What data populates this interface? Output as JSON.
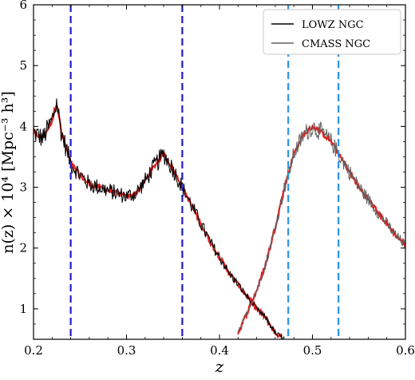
{
  "chart_data": {
    "type": "line",
    "xlabel": "z",
    "ylabel": "n(z) × 10⁴ [Mpc⁻³ h³]",
    "xlim": [
      0.2,
      0.6
    ],
    "ylim": [
      0.5,
      6.0
    ],
    "grid": false,
    "legend_position": "top-right",
    "x_ticks": [
      0.2,
      0.3,
      0.4,
      0.5,
      0.6
    ],
    "x_tick_labels": [
      "0.2",
      "0.3",
      "0.4",
      "0.5",
      "0.6"
    ],
    "y_ticks": [
      1,
      2,
      3,
      4,
      5,
      6
    ],
    "y_tick_labels": [
      "1",
      "2",
      "3",
      "4",
      "5",
      "6"
    ],
    "series": [
      {
        "name": "LOWZ NGC",
        "color": "#000000",
        "x": [
          0.2,
          0.21,
          0.22,
          0.225,
          0.23,
          0.24,
          0.25,
          0.26,
          0.27,
          0.28,
          0.29,
          0.3,
          0.31,
          0.32,
          0.33,
          0.34,
          0.35,
          0.36,
          0.37,
          0.38,
          0.39,
          0.4,
          0.41,
          0.42,
          0.43,
          0.44,
          0.45,
          0.46,
          0.47
        ],
        "y": [
          3.9,
          3.8,
          4.1,
          4.4,
          3.9,
          3.4,
          3.2,
          3.05,
          3.0,
          2.95,
          2.9,
          2.85,
          2.9,
          3.1,
          3.35,
          3.55,
          3.3,
          3.0,
          2.7,
          2.4,
          2.1,
          1.85,
          1.6,
          1.4,
          1.2,
          1.0,
          0.85,
          0.6,
          0.5
        ],
        "noise": 0.14
      },
      {
        "name": "CMASS NGC",
        "color": "#606060",
        "x": [
          0.42,
          0.43,
          0.44,
          0.45,
          0.46,
          0.47,
          0.48,
          0.49,
          0.5,
          0.51,
          0.52,
          0.53,
          0.54,
          0.55,
          0.56,
          0.57,
          0.58,
          0.59,
          0.6
        ],
        "y": [
          0.6,
          0.95,
          1.3,
          1.75,
          2.35,
          3.0,
          3.55,
          3.85,
          4.0,
          3.9,
          3.75,
          3.5,
          3.25,
          3.0,
          2.8,
          2.6,
          2.4,
          2.2,
          2.05
        ],
        "noise": 0.12
      }
    ],
    "model_color": "#dd2020",
    "vertical_lines": [
      {
        "x": 0.24,
        "color": "#1c1ccc"
      },
      {
        "x": 0.36,
        "color": "#1c1ccc"
      },
      {
        "x": 0.474,
        "color": "#2b93e6"
      },
      {
        "x": 0.528,
        "color": "#2b93e6"
      }
    ]
  }
}
